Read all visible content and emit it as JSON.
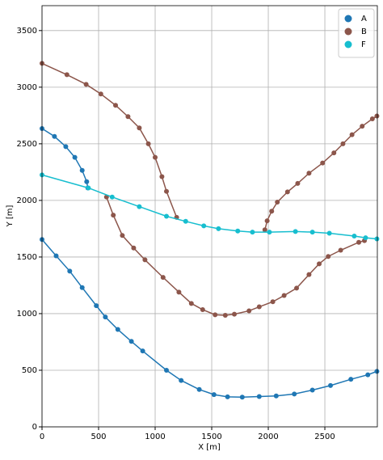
{
  "chart_data": {
    "type": "line",
    "xlabel": "X [m]",
    "ylabel": "Y [m]",
    "xlim": [
      0,
      2964
    ],
    "ylim": [
      0,
      3720
    ],
    "xticks": [
      0,
      500,
      1000,
      1500,
      2000,
      2500
    ],
    "yticks": [
      0,
      500,
      1000,
      1500,
      2000,
      2500,
      3000,
      3500
    ],
    "grid": true,
    "legend": "upper right",
    "series": [
      {
        "name": "A",
        "color": "#1f77b4",
        "x": [
          0,
          110,
          210,
          290,
          355,
          395,
          405,
          null,
          0,
          125,
          245,
          355,
          480,
          560,
          670,
          790,
          890,
          1100,
          1230,
          1390,
          1520,
          1640,
          1770,
          1920,
          2070,
          2230,
          2390,
          2550,
          2730,
          2880,
          2960
        ],
        "y": [
          2635,
          2565,
          2475,
          2380,
          2265,
          2165,
          2110,
          null,
          1655,
          1510,
          1375,
          1230,
          1070,
          970,
          860,
          755,
          670,
          500,
          410,
          330,
          285,
          265,
          262,
          268,
          273,
          290,
          325,
          365,
          420,
          460,
          490
        ]
      },
      {
        "name": "B",
        "color": "#8c564b",
        "x": [
          0,
          220,
          390,
          520,
          650,
          760,
          860,
          940,
          1000,
          1060,
          1100,
          1190,
          null,
          570,
          630,
          710,
          810,
          910,
          1070,
          1210,
          1320,
          1420,
          1530,
          1620,
          1700,
          1830,
          1920,
          2040,
          2140,
          2250,
          2360,
          2450,
          2530,
          2640,
          2800,
          2850,
          null,
          1970,
          1990,
          2030,
          2080,
          2170,
          2260,
          2360,
          2480,
          2580,
          2660,
          2740,
          2830,
          2920,
          2960
        ],
        "y": [
          3210,
          3110,
          3025,
          2940,
          2840,
          2740,
          2640,
          2500,
          2380,
          2210,
          2080,
          1850,
          null,
          2030,
          1870,
          1690,
          1580,
          1475,
          1320,
          1190,
          1090,
          1035,
          990,
          985,
          995,
          1025,
          1060,
          1105,
          1160,
          1225,
          1345,
          1440,
          1505,
          1560,
          1630,
          1645,
          null,
          1740,
          1820,
          1905,
          1985,
          2075,
          2150,
          2240,
          2330,
          2420,
          2500,
          2580,
          2655,
          2720,
          2745
        ]
      },
      {
        "name": "F",
        "color": "#17becf",
        "x": [
          0,
          410,
          620,
          860,
          1100,
          1270,
          1430,
          1560,
          1730,
          1860,
          2010,
          2240,
          2390,
          2540,
          2760,
          2860,
          2960
        ],
        "y": [
          2225,
          2110,
          2030,
          1945,
          1860,
          1815,
          1775,
          1750,
          1730,
          1720,
          1720,
          1725,
          1720,
          1710,
          1685,
          1670,
          1660
        ]
      }
    ]
  }
}
